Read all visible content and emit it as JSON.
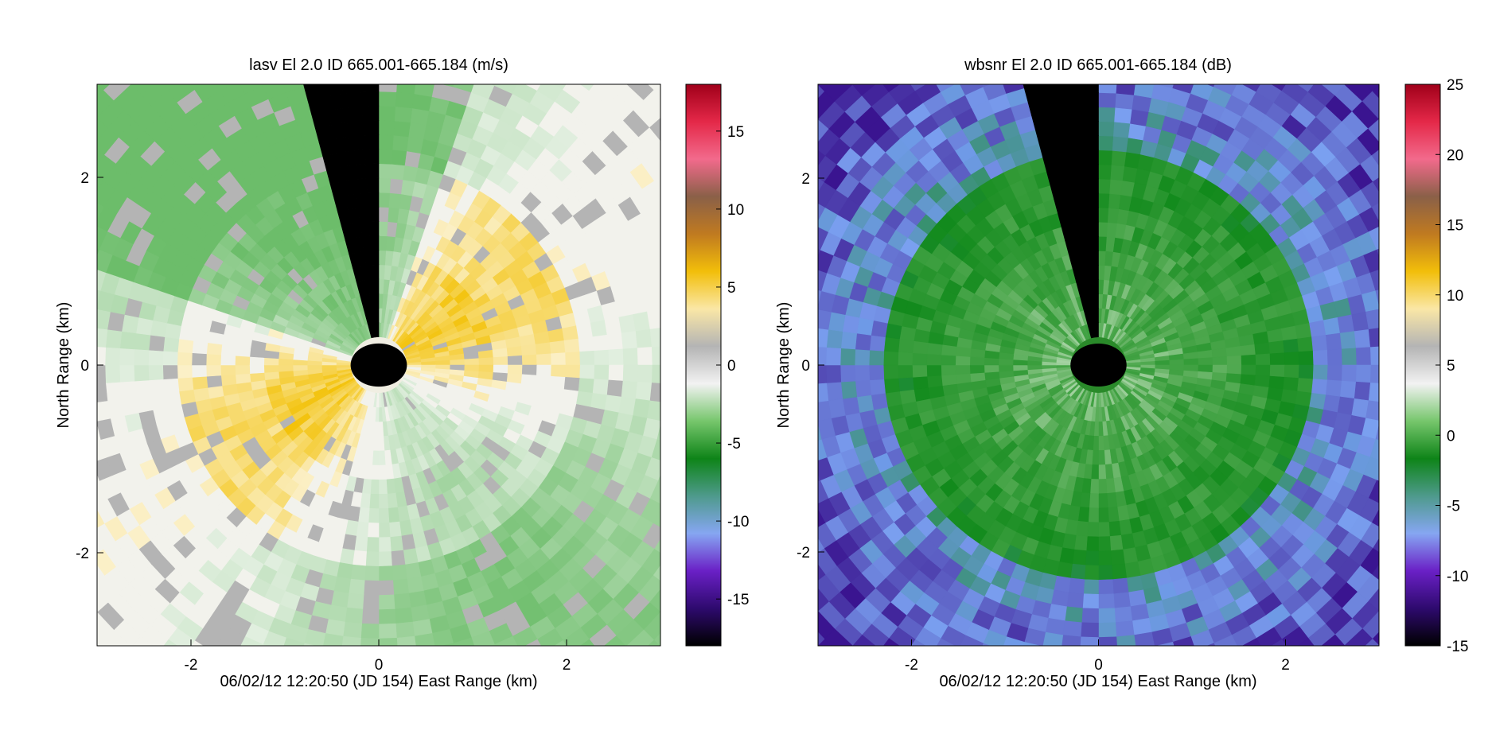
{
  "chart_data": [
    {
      "type": "heatmap",
      "subtype": "radar-ppi",
      "title": "lasv    El 2.0    ID 665.001-665.184    (m/s)",
      "xlabel": "06/02/12 12:20:50 (JD 154)      East Range (km)",
      "ylabel": "North Range (km)",
      "xlim": [
        -3,
        3
      ],
      "ylim": [
        -3,
        3
      ],
      "xticks": [
        "-2",
        "0",
        "2"
      ],
      "yticks": [
        "2",
        "0",
        "-2"
      ],
      "colorbar": {
        "range": [
          -18,
          18
        ],
        "ticks": [
          "15",
          "10",
          "5",
          "0",
          "-5",
          "-10",
          "-15"
        ],
        "colors": [
          "#000000",
          "#2e0a6e",
          "#6a20c6",
          "#86a6f2",
          "#4e9a8c",
          "#0e8418",
          "#76c66c",
          "#f2f2f2",
          "#b4b4b4",
          "#fae7a6",
          "#f2be0a",
          "#c07a20",
          "#8a6048",
          "#f26a8c",
          "#e42848",
          "#a0001a"
        ]
      },
      "features": {
        "blank_sector_deg": [
          345,
          360
        ],
        "center_blank_radius_km": 0.3,
        "description_values": {
          "dominant_inner": "positive ~2-4 m/s yellow band SW-NE",
          "outer": "negative ~-3 to -6 m/s green"
        }
      }
    },
    {
      "type": "heatmap",
      "subtype": "radar-ppi",
      "title": "wbsnr    El 2.0    ID 665.001-665.184    (dB)",
      "xlabel": "06/02/12 12:20:50 (JD 154)      East Range (km)",
      "ylabel": "North Range (km)",
      "xlim": [
        -3,
        3
      ],
      "ylim": [
        -3,
        3
      ],
      "xticks": [
        "-2",
        "0",
        "2"
      ],
      "yticks": [
        "2",
        "0",
        "-2"
      ],
      "colorbar": {
        "range": [
          -15,
          25
        ],
        "ticks": [
          "25",
          "20",
          "15",
          "10",
          "5",
          "0",
          "-5",
          "-10",
          "-15"
        ],
        "colors": [
          "#000000",
          "#2e0a6e",
          "#6a20c6",
          "#86a6f2",
          "#4e9a8c",
          "#0e8418",
          "#76c66c",
          "#f2f2f2",
          "#b4b4b4",
          "#fae7a6",
          "#f2be0a",
          "#c07a20",
          "#8a6048",
          "#f26a8c",
          "#e42848",
          "#a0001a"
        ]
      },
      "features": {
        "blank_sector_deg": [
          345,
          360
        ],
        "center_blank_radius_km": 0.3
      }
    }
  ],
  "colors": {
    "background": "#ffffff",
    "blank": "#000000",
    "missing": "#b4b4b4"
  }
}
